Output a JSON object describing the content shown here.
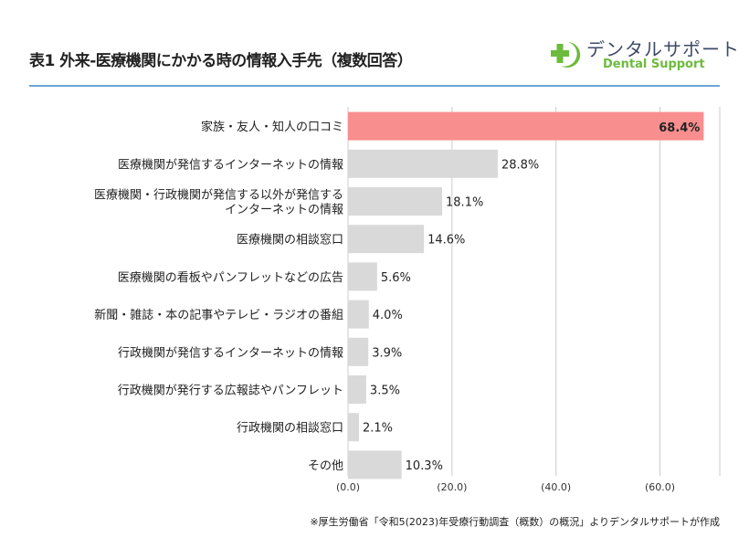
{
  "title": "表1 外来-医療機関にかかる時の情報入手先（複数回答）",
  "logo": {
    "jp": "デンタルサポート",
    "en": "Dental Support",
    "icon": "plus-moon-icon",
    "brand_green": "#6cbb3c",
    "brand_navy": "#3d4a66"
  },
  "note": "※厚生労働省「令和5(2023)年受療行動調査（概数）の概況」よりデンタルサポートが作成",
  "chart_data": {
    "type": "bar",
    "orientation": "horizontal",
    "categories": [
      [
        "家族・友人・知人の口コミ"
      ],
      [
        "医療機関が発信するインターネットの情報"
      ],
      [
        "医療機関・行政機関が発信する以外が発信する",
        "インターネットの情報"
      ],
      [
        "医療機関の相談窓口"
      ],
      [
        "医療機関の看板やパンフレットなどの広告"
      ],
      [
        "新聞・雑誌・本の記事やテレビ・ラジオの番組"
      ],
      [
        "行政機関が発信するインターネットの情報"
      ],
      [
        "行政機関が発行する広報誌やパンフレット"
      ],
      [
        "行政機関の相談窓口"
      ],
      [
        "その他"
      ]
    ],
    "values": [
      68.4,
      28.8,
      18.1,
      14.6,
      5.6,
      4.0,
      3.9,
      3.5,
      2.1,
      10.3
    ],
    "value_labels": [
      "68.4%",
      "28.8%",
      "18.1%",
      "14.6%",
      "5.6%",
      "4.0%",
      "3.9%",
      "3.5%",
      "2.1%",
      "10.3%"
    ],
    "xticks": [
      0,
      20,
      40,
      60
    ],
    "xtick_labels": [
      "(0.0)",
      "(20.0)",
      "(40.0)",
      "(60.0)"
    ],
    "xlim": [
      0,
      71.5
    ],
    "grid": true,
    "highlight_color": "#f98e8f",
    "bar_color": "#d9d9d9"
  }
}
